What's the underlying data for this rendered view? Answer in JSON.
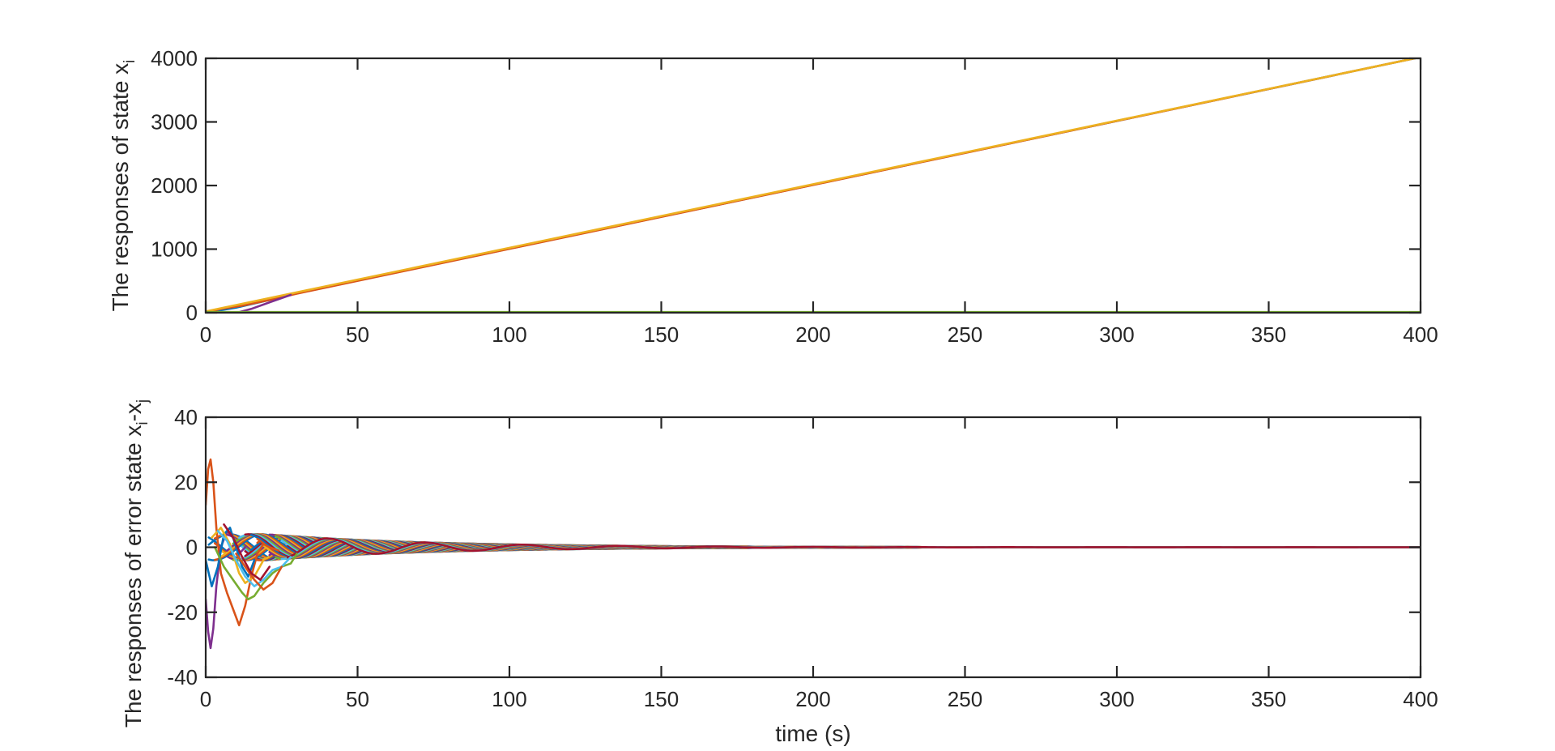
{
  "chart_data": [
    {
      "type": "line",
      "title": "",
      "xlabel": "",
      "ylabel": "The responses of state x",
      "ylabel_sub": "i",
      "xlim": [
        0,
        400
      ],
      "ylim": [
        0,
        4000
      ],
      "xticks": [
        "0",
        "50",
        "100",
        "150",
        "200",
        "250",
        "300",
        "350",
        "400"
      ],
      "yticks": [
        "0",
        "1000",
        "2000",
        "3000",
        "4000"
      ],
      "grid": false,
      "series": [
        {
          "color": "#0072BD",
          "x": [
            0,
            10,
            20,
            28,
            400
          ],
          "y": [
            0,
            80,
            190,
            285,
            4020
          ]
        },
        {
          "color": "#D95319",
          "x": [
            0,
            5,
            12,
            22,
            30,
            400
          ],
          "y": [
            0,
            60,
            110,
            210,
            300,
            4020
          ]
        },
        {
          "color": "#EDB120",
          "x": [
            0,
            400
          ],
          "y": [
            20,
            4020
          ]
        },
        {
          "color": "#7E2F8E",
          "x": [
            0,
            4,
            8,
            15,
            22,
            28
          ],
          "y": [
            -20,
            -40,
            -30,
            60,
            180,
            280
          ]
        },
        {
          "color": "#7E2F8E",
          "x": [
            0,
            400
          ],
          "y": [
            0,
            0
          ]
        },
        {
          "color": "#77AC30",
          "x": [
            0,
            400
          ],
          "y": [
            10,
            10
          ]
        }
      ]
    },
    {
      "type": "line",
      "title": "",
      "xlabel": "time (s)",
      "ylabel": "The responses of error state x",
      "ylabel_sub1": "i",
      "ylabel_mid": "-x",
      "ylabel_sub2": "j",
      "xlim": [
        0,
        400
      ],
      "ylim": [
        -40,
        40
      ],
      "xticks": [
        "0",
        "50",
        "100",
        "150",
        "200",
        "250",
        "300",
        "350",
        "400"
      ],
      "yticks": [
        "-40",
        "-20",
        "0",
        "20",
        "40"
      ],
      "grid": false,
      "band_start_amplitude": 4.0,
      "band_decay_rate": 0.019,
      "oscillation_period": 32,
      "series_colors": [
        "#0072BD",
        "#D95319",
        "#EDB120",
        "#7E2F8E",
        "#77AC30",
        "#4DBEEE",
        "#A2142F"
      ],
      "transient_series": [
        {
          "color": "#D95319",
          "x": [
            0,
            0.8,
            1.6,
            2.5,
            3.5,
            5,
            7,
            9,
            11,
            13,
            15,
            17,
            19,
            21,
            24
          ],
          "y": [
            13,
            24,
            27,
            20,
            6,
            -8,
            -14,
            -19,
            -24,
            -18,
            -9,
            -2,
            1,
            0,
            -1
          ]
        },
        {
          "color": "#7E2F8E",
          "x": [
            0,
            0.8,
            1.6,
            2.5,
            3.5,
            5,
            7,
            9,
            11,
            13
          ],
          "y": [
            -16,
            -26,
            -31,
            -25,
            -12,
            0,
            5,
            3,
            -2,
            0
          ]
        },
        {
          "color": "#0072BD",
          "x": [
            0,
            2,
            4,
            6,
            8,
            10,
            12,
            14,
            16
          ],
          "y": [
            -4,
            -12,
            -6,
            4,
            6,
            0,
            -6,
            -9,
            -4
          ]
        },
        {
          "color": "#77AC30",
          "x": [
            3,
            6,
            9,
            12,
            14,
            16,
            19,
            22,
            25,
            28,
            30
          ],
          "y": [
            0,
            -6,
            -10,
            -14,
            -16,
            -15,
            -11,
            -8,
            -6,
            -5,
            -2
          ]
        },
        {
          "color": "#EDB120",
          "x": [
            2,
            5,
            8,
            11,
            13,
            16,
            19
          ],
          "y": [
            3,
            6,
            1,
            -8,
            -11,
            -9,
            -4
          ]
        },
        {
          "color": "#4DBEEE",
          "x": [
            4,
            7,
            10,
            13,
            16,
            19,
            22,
            25,
            28
          ],
          "y": [
            5,
            2,
            -4,
            -9,
            -12,
            -10,
            -7,
            -6,
            -3
          ]
        },
        {
          "color": "#D95319",
          "x": [
            10,
            13,
            16,
            19,
            22,
            25
          ],
          "y": [
            -2,
            -6,
            -10,
            -13,
            -11,
            -6
          ]
        },
        {
          "color": "#A2142F",
          "x": [
            6,
            9,
            12,
            15,
            18,
            21
          ],
          "y": [
            7,
            3,
            -3,
            -8,
            -10,
            -6
          ]
        }
      ]
    }
  ]
}
